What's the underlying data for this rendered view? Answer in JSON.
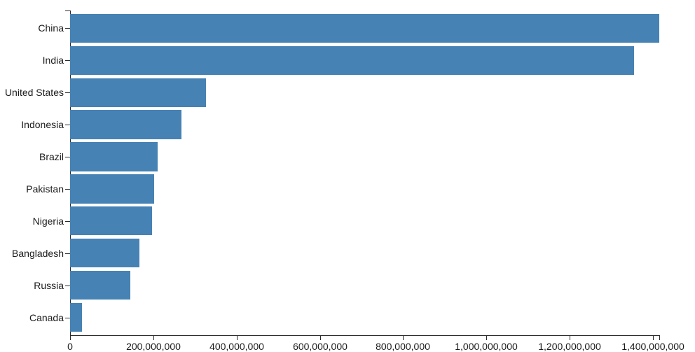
{
  "chart_data": {
    "type": "bar",
    "orientation": "horizontal",
    "title": "",
    "xlabel": "",
    "ylabel": "",
    "categories": [
      "China",
      "India",
      "United States",
      "Indonesia",
      "Brazil",
      "Pakistan",
      "Nigeria",
      "Bangladesh",
      "Russia",
      "Canada"
    ],
    "values": [
      1415000000,
      1354000000,
      327000000,
      267000000,
      211000000,
      201000000,
      196000000,
      166000000,
      144000000,
      29000000
    ],
    "xlim": [
      0,
      1415000000
    ],
    "x_ticks": [
      0,
      200000000,
      400000000,
      600000000,
      800000000,
      1000000000,
      1200000000,
      1400000000
    ],
    "x_tick_labels": [
      "0",
      "200,000,000",
      "400,000,000",
      "600,000,000",
      "800,000,000",
      "1,000,000,000",
      "1,200,000,000",
      "1,400,000,000"
    ],
    "grid": false,
    "legend": null,
    "bar_color": "#4682b4",
    "axis_color": "#2b2b2b",
    "label_color": "#1a1a1a"
  }
}
